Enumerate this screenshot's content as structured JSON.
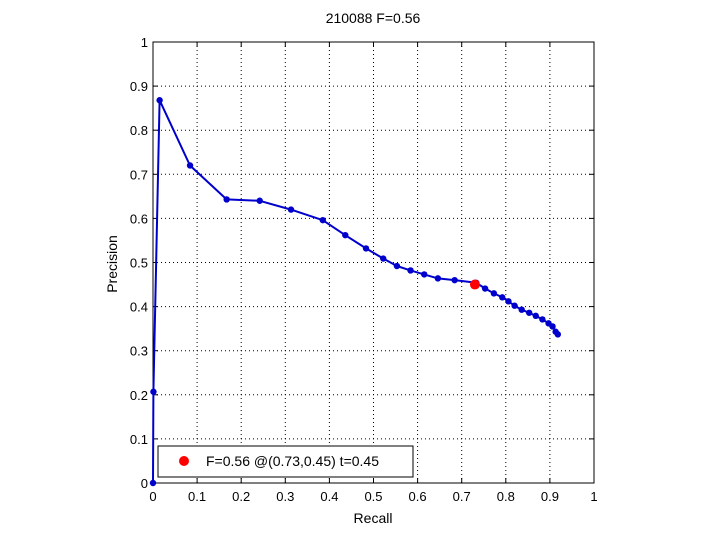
{
  "chart_data": {
    "type": "line",
    "title": "210088 F=0.56",
    "xlabel": "Recall",
    "ylabel": "Precision",
    "xlim": [
      0,
      1
    ],
    "ylim": [
      0,
      1
    ],
    "xticks": [
      "0",
      "0.1",
      "0.2",
      "0.3",
      "0.4",
      "0.5",
      "0.6",
      "0.7",
      "0.8",
      "0.9",
      "1"
    ],
    "yticks": [
      "0",
      "0.1",
      "0.2",
      "0.3",
      "0.4",
      "0.5",
      "0.6",
      "0.7",
      "0.8",
      "0.9",
      "1"
    ],
    "grid": true,
    "legend_position": "bottom-left",
    "series": [
      {
        "color": "#0000cc",
        "x": [
          0.0,
          0.001,
          0.015,
          0.084,
          0.167,
          0.242,
          0.313,
          0.385,
          0.436,
          0.483,
          0.522,
          0.553,
          0.584,
          0.615,
          0.646,
          0.684,
          0.733,
          0.753,
          0.773,
          0.792,
          0.806,
          0.82,
          0.836,
          0.853,
          0.868,
          0.883,
          0.897,
          0.906,
          0.913,
          0.918
        ],
        "y": [
          0.0,
          0.207,
          0.868,
          0.72,
          0.643,
          0.64,
          0.62,
          0.596,
          0.562,
          0.532,
          0.509,
          0.492,
          0.482,
          0.473,
          0.464,
          0.46,
          0.454,
          0.441,
          0.43,
          0.421,
          0.412,
          0.402,
          0.393,
          0.386,
          0.379,
          0.371,
          0.362,
          0.355,
          0.343,
          0.337
        ]
      }
    ],
    "highlight_point": {
      "x": 0.73,
      "y": 0.45,
      "color": "#ff0000"
    },
    "legend_entries": [
      "F=0.56 @(0.73,0.45) t=0.45"
    ]
  }
}
